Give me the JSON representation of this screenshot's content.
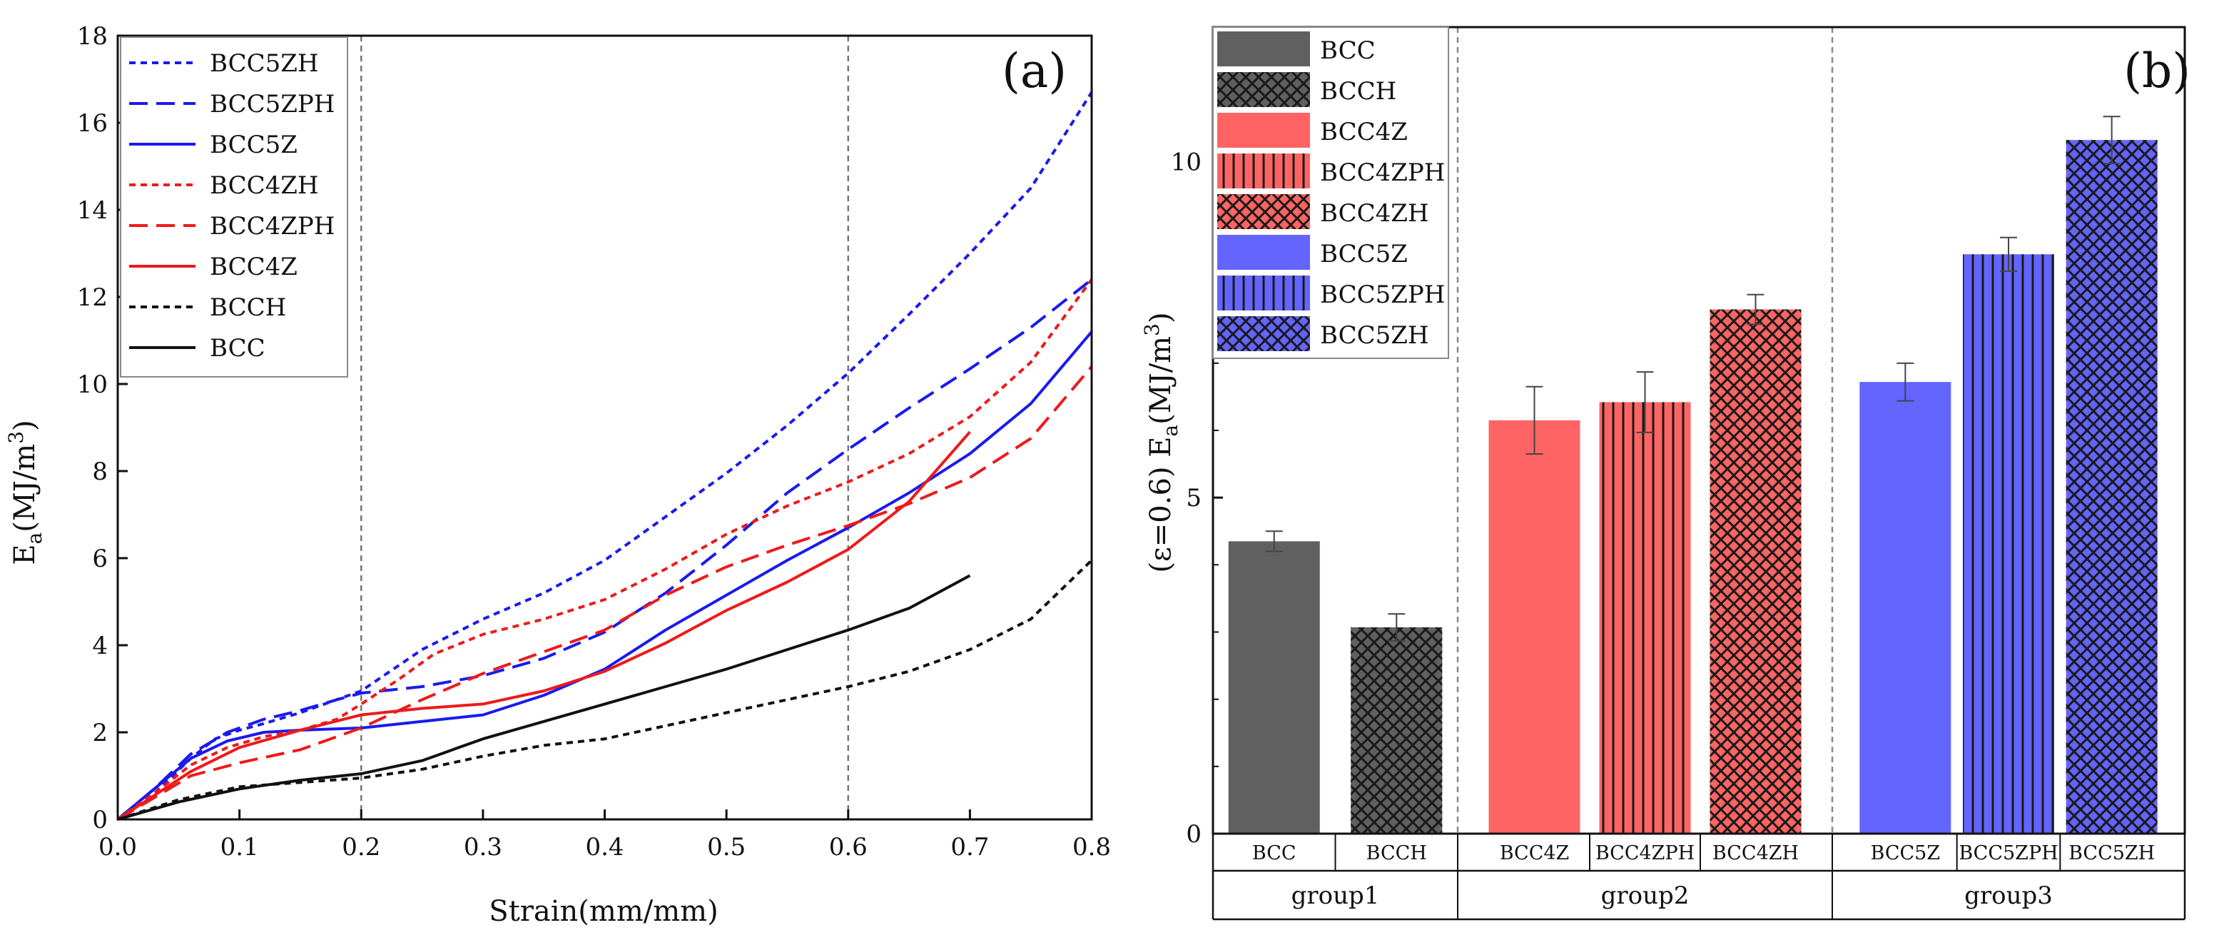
{
  "chart_data": [
    {
      "type": "line",
      "panel_label": "(a)",
      "xlabel": "Strain(mm/mm)",
      "ylabel_main": "E",
      "ylabel_sub": "a",
      "ylabel_units": "(MJ/m",
      "ylabel_sup": "3",
      "ylabel_close": ")",
      "xlim": [
        0,
        0.8
      ],
      "ylim": [
        0,
        18
      ],
      "xticks": [
        "0.0",
        "0.1",
        "0.2",
        "0.3",
        "0.4",
        "0.5",
        "0.6",
        "0.7",
        "0.8"
      ],
      "yticks": [
        "0",
        "2",
        "4",
        "6",
        "8",
        "10",
        "12",
        "14",
        "16",
        "18"
      ],
      "vlines": [
        0.2,
        0.6
      ],
      "legend_position": "top-left",
      "series": [
        {
          "name": "BCC5ZH",
          "color": "#1a1aee",
          "dash": "short",
          "x": [
            0,
            0.03,
            0.06,
            0.08,
            0.1,
            0.12,
            0.15,
            0.2,
            0.25,
            0.3,
            0.35,
            0.4,
            0.45,
            0.5,
            0.55,
            0.6,
            0.65,
            0.7,
            0.75,
            0.8
          ],
          "y": [
            0,
            0.6,
            1.4,
            1.85,
            2.05,
            2.2,
            2.45,
            2.95,
            3.9,
            4.6,
            5.2,
            5.95,
            6.95,
            7.95,
            9.05,
            10.25,
            11.6,
            13.0,
            14.5,
            16.7
          ]
        },
        {
          "name": "BCC5ZPH",
          "color": "#1a1aee",
          "dash": "long",
          "x": [
            0,
            0.03,
            0.06,
            0.09,
            0.12,
            0.15,
            0.18,
            0.2,
            0.25,
            0.3,
            0.35,
            0.4,
            0.45,
            0.5,
            0.55,
            0.6,
            0.65,
            0.7,
            0.75,
            0.8
          ],
          "y": [
            0,
            0.7,
            1.5,
            2.0,
            2.3,
            2.5,
            2.75,
            2.9,
            3.05,
            3.3,
            3.7,
            4.3,
            5.2,
            6.3,
            7.5,
            8.5,
            9.45,
            10.35,
            11.3,
            12.4
          ]
        },
        {
          "name": "BCC5Z",
          "color": "#1a1aee",
          "dash": "solid",
          "x": [
            0,
            0.03,
            0.06,
            0.09,
            0.12,
            0.15,
            0.2,
            0.25,
            0.3,
            0.35,
            0.4,
            0.45,
            0.5,
            0.55,
            0.6,
            0.65,
            0.7,
            0.75,
            0.8
          ],
          "y": [
            0,
            0.7,
            1.4,
            1.8,
            2.0,
            2.05,
            2.1,
            2.25,
            2.4,
            2.85,
            3.45,
            4.35,
            5.15,
            5.95,
            6.7,
            7.5,
            8.4,
            9.55,
            11.2
          ]
        },
        {
          "name": "BCC4ZH",
          "color": "#ee1a1a",
          "dash": "short",
          "x": [
            0,
            0.03,
            0.06,
            0.09,
            0.12,
            0.15,
            0.18,
            0.2,
            0.23,
            0.26,
            0.3,
            0.35,
            0.4,
            0.45,
            0.5,
            0.55,
            0.6,
            0.65,
            0.7,
            0.75,
            0.8
          ],
          "y": [
            0,
            0.6,
            1.25,
            1.65,
            1.9,
            2.05,
            2.3,
            2.65,
            3.2,
            3.8,
            4.25,
            4.6,
            5.05,
            5.75,
            6.55,
            7.2,
            7.75,
            8.4,
            9.25,
            10.5,
            12.4
          ]
        },
        {
          "name": "BCC4ZPH",
          "color": "#ee1a1a",
          "dash": "long",
          "x": [
            0,
            0.03,
            0.06,
            0.1,
            0.15,
            0.2,
            0.25,
            0.3,
            0.35,
            0.4,
            0.45,
            0.5,
            0.55,
            0.6,
            0.65,
            0.7,
            0.75,
            0.8
          ],
          "y": [
            0,
            0.5,
            1.0,
            1.3,
            1.6,
            2.1,
            2.75,
            3.35,
            3.85,
            4.35,
            5.15,
            5.8,
            6.3,
            6.75,
            7.25,
            7.85,
            8.75,
            10.4
          ]
        },
        {
          "name": "BCC4Z",
          "color": "#ee1a1a",
          "dash": "solid",
          "x": [
            0,
            0.03,
            0.06,
            0.1,
            0.15,
            0.2,
            0.25,
            0.3,
            0.35,
            0.4,
            0.45,
            0.5,
            0.55,
            0.6,
            0.65,
            0.7
          ],
          "y": [
            0,
            0.55,
            1.1,
            1.65,
            2.05,
            2.4,
            2.55,
            2.65,
            2.95,
            3.4,
            4.05,
            4.8,
            5.45,
            6.2,
            7.3,
            8.9
          ]
        },
        {
          "name": "BCCH",
          "color": "#111111",
          "dash": "short",
          "x": [
            0,
            0.05,
            0.1,
            0.15,
            0.2,
            0.25,
            0.3,
            0.35,
            0.4,
            0.45,
            0.5,
            0.55,
            0.6,
            0.65,
            0.7,
            0.75,
            0.8
          ],
          "y": [
            0,
            0.45,
            0.75,
            0.85,
            0.95,
            1.15,
            1.45,
            1.7,
            1.85,
            2.15,
            2.45,
            2.75,
            3.05,
            3.4,
            3.9,
            4.6,
            5.95
          ]
        },
        {
          "name": "BCC",
          "color": "#111111",
          "dash": "solid",
          "x": [
            0,
            0.05,
            0.1,
            0.15,
            0.2,
            0.25,
            0.3,
            0.35,
            0.4,
            0.45,
            0.5,
            0.55,
            0.6,
            0.65,
            0.7
          ],
          "y": [
            0,
            0.4,
            0.7,
            0.9,
            1.05,
            1.35,
            1.85,
            2.25,
            2.65,
            3.05,
            3.45,
            3.9,
            4.35,
            4.85,
            5.6
          ]
        }
      ]
    },
    {
      "type": "bar",
      "panel_label": "(b)",
      "ylabel_main": "(ε=0.6) E",
      "ylabel_sub": "a",
      "ylabel_units": "(MJ/m",
      "ylabel_sup": "3",
      "ylabel_close": ")",
      "ylim": [
        0,
        12
      ],
      "yticks": [
        "0",
        "5",
        "10"
      ],
      "legend_position": "top-left",
      "groups": [
        {
          "name": "group1",
          "categories": [
            "BCC",
            "BCCH"
          ]
        },
        {
          "name": "group2",
          "categories": [
            "BCC4Z",
            "BCC4ZPH",
            "BCC4ZH"
          ]
        },
        {
          "name": "group3",
          "categories": [
            "BCC5Z",
            "BCC5ZPH",
            "BCC5ZH"
          ]
        }
      ],
      "bars": [
        {
          "name": "BCC",
          "value": 4.35,
          "error": 0.15,
          "color": "#606060",
          "pattern": "none"
        },
        {
          "name": "BCCH",
          "value": 3.07,
          "error": 0.2,
          "color": "#606060",
          "pattern": "crosshatch"
        },
        {
          "name": "BCC4Z",
          "value": 6.15,
          "error": 0.5,
          "color": "#ff6464",
          "pattern": "none"
        },
        {
          "name": "BCC4ZPH",
          "value": 6.42,
          "error": 0.45,
          "color": "#ff6464",
          "pattern": "vertical"
        },
        {
          "name": "BCC4ZH",
          "value": 7.8,
          "error": 0.22,
          "color": "#ff6464",
          "pattern": "crosshatch"
        },
        {
          "name": "BCC5Z",
          "value": 6.72,
          "error": 0.28,
          "color": "#6464ff",
          "pattern": "none"
        },
        {
          "name": "BCC5ZPH",
          "value": 8.62,
          "error": 0.25,
          "color": "#6464ff",
          "pattern": "vertical"
        },
        {
          "name": "BCC5ZH",
          "value": 10.32,
          "error": 0.35,
          "color": "#6464ff",
          "pattern": "crosshatch"
        }
      ]
    }
  ]
}
